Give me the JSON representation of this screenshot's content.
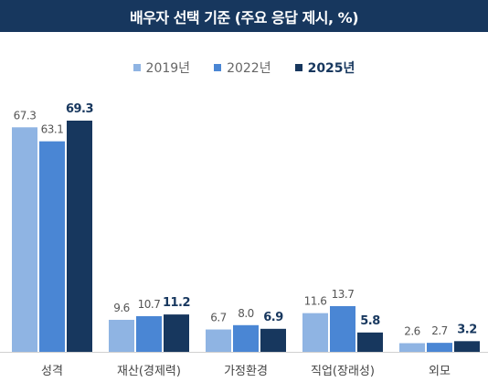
{
  "title": "배우자 선택 기준 (주요 응답 제시, %)",
  "colors": {
    "header_bg": "#17375e",
    "series": [
      "#8fb4e3",
      "#4a86d4",
      "#17375e"
    ]
  },
  "chart_data": {
    "type": "bar",
    "categories": [
      "성격",
      "재산(경제력)",
      "가정환경",
      "직업(장래성)",
      "외모"
    ],
    "series": [
      {
        "name": "2019년",
        "values": [
          67.3,
          9.6,
          6.7,
          11.6,
          2.6
        ]
      },
      {
        "name": "2022년",
        "values": [
          63.1,
          10.7,
          8.0,
          13.7,
          2.7
        ]
      },
      {
        "name": "2025년",
        "values": [
          69.3,
          11.2,
          6.9,
          5.8,
          3.2
        ]
      }
    ],
    "value_labels": [
      [
        "67.3",
        "9.6",
        "6.7",
        "11.6",
        "2.6"
      ],
      [
        "63.1",
        "10.7",
        "8.0",
        "13.7",
        "2.7"
      ],
      [
        "69.3",
        "11.2",
        "6.9",
        "5.8",
        "3.2"
      ]
    ],
    "ylim": [
      0,
      70
    ],
    "legend_position": "top-center",
    "grid": false
  }
}
